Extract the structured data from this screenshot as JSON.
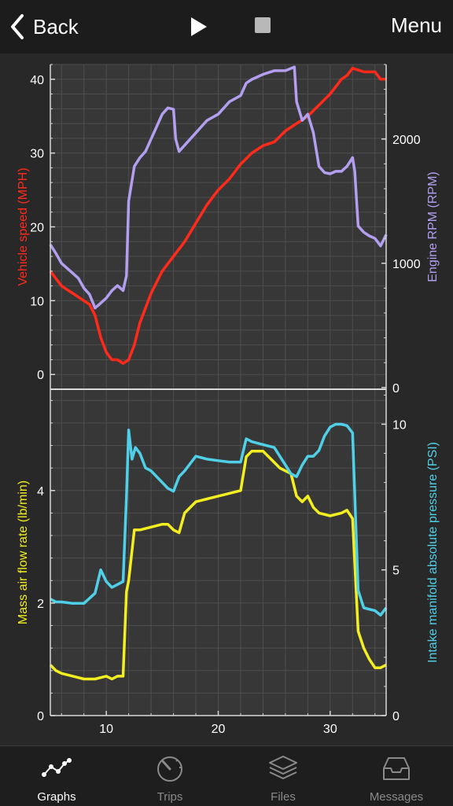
{
  "nav": {
    "back_label": "Back",
    "menu_label": "Menu"
  },
  "tabs": [
    {
      "label": "Graphs",
      "icon": "graph-icon",
      "active": true
    },
    {
      "label": "Trips",
      "icon": "speedometer-icon",
      "active": false
    },
    {
      "label": "Files",
      "icon": "layers-icon",
      "active": false
    },
    {
      "label": "Messages",
      "icon": "inbox-icon",
      "active": false
    }
  ],
  "chart_data": [
    {
      "type": "line",
      "xlim": [
        5,
        35
      ],
      "xticks": [
        10,
        20,
        30
      ],
      "grid": true,
      "y_left": {
        "label": "Vehicle speed (MPH)",
        "ylim": [
          -2,
          42
        ],
        "ticks": [
          0,
          10,
          20,
          30,
          40
        ],
        "color": "#ff2a1a"
      },
      "y_right": {
        "label": "Engine RPM (RPM)",
        "ylim": [
          -14,
          2600
        ],
        "ticks": [
          0,
          1000,
          2000
        ],
        "color": "#b39ef0"
      },
      "series": [
        {
          "name": "Vehicle speed (MPH)",
          "axis": "left",
          "color": "#ff2a1a",
          "x": [
            5,
            5.5,
            6,
            6.5,
            7,
            7.5,
            8,
            8.5,
            9,
            9.5,
            10,
            10.5,
            11,
            11.5,
            12,
            12.5,
            13,
            13.5,
            14,
            14.5,
            15,
            15.5,
            16,
            17,
            18,
            19,
            20,
            21,
            22,
            23,
            24,
            25,
            26,
            27,
            28,
            29,
            30,
            31,
            31.5,
            32,
            33,
            34,
            34.5,
            35
          ],
          "y": [
            14,
            13,
            12,
            11.5,
            11,
            10.5,
            10,
            9.5,
            8,
            5,
            3,
            2,
            2,
            1.5,
            2,
            4,
            7,
            9,
            11,
            12.5,
            14,
            15,
            16,
            18,
            20.5,
            23,
            25,
            26.5,
            28.5,
            30,
            31,
            31.5,
            33,
            34,
            35,
            36.5,
            38,
            40,
            40.5,
            41.5,
            41,
            41,
            40,
            40
          ]
        },
        {
          "name": "Engine RPM (RPM)",
          "axis": "right",
          "color": "#b39ef0",
          "x": [
            5,
            5.5,
            6,
            7,
            7.5,
            8,
            8.5,
            9,
            9.5,
            10,
            10.5,
            11,
            11.5,
            11.8,
            12,
            12.5,
            13,
            13.5,
            14,
            14.5,
            15,
            15.5,
            16,
            16.2,
            16.5,
            17,
            17.5,
            18,
            19,
            20,
            21,
            22,
            22.5,
            23,
            24,
            25,
            26,
            26.8,
            27,
            27.5,
            28,
            28.5,
            29,
            29.5,
            30,
            30.5,
            31,
            31.5,
            32,
            32.2,
            32.5,
            33,
            33.5,
            34,
            34.5,
            35
          ],
          "y": [
            1150,
            1080,
            1000,
            920,
            880,
            800,
            750,
            640,
            680,
            720,
            780,
            820,
            780,
            900,
            1500,
            1780,
            1850,
            1900,
            2000,
            2100,
            2200,
            2250,
            2240,
            2000,
            1900,
            1950,
            2000,
            2050,
            2150,
            2200,
            2300,
            2350,
            2450,
            2480,
            2520,
            2550,
            2550,
            2580,
            2300,
            2150,
            2200,
            2050,
            1780,
            1730,
            1720,
            1740,
            1740,
            1780,
            1850,
            1740,
            1300,
            1250,
            1220,
            1200,
            1140,
            1230
          ]
        }
      ]
    },
    {
      "type": "line",
      "xlim": [
        5,
        35
      ],
      "xticks": [
        10,
        20,
        30
      ],
      "grid": true,
      "y_left": {
        "label": "Mass air flow rate (lb/min)",
        "ylim": [
          0,
          5.8
        ],
        "ticks": [
          0,
          2,
          4
        ],
        "color": "#f2ee20"
      },
      "y_right": {
        "label": "Intake manifold absolute pressure (PSI)",
        "ylim": [
          0,
          11.2
        ],
        "ticks": [
          0,
          5,
          10
        ],
        "color": "#4fd0e8"
      },
      "series": [
        {
          "name": "Mass air flow rate (lb/min)",
          "axis": "left",
          "color": "#f2ee20",
          "x": [
            5,
            5.5,
            6,
            7,
            8,
            9,
            10,
            10.5,
            11,
            11.5,
            11.8,
            12,
            12.5,
            13,
            14,
            15,
            15.5,
            16,
            16.5,
            17,
            18,
            19,
            20,
            21,
            22,
            22.5,
            23,
            24,
            25,
            25.5,
            26,
            26.5,
            27,
            27.5,
            28,
            28.5,
            29,
            30,
            31,
            31.5,
            32,
            32.5,
            33,
            33.5,
            34,
            34.5,
            35
          ],
          "y": [
            0.9,
            0.8,
            0.75,
            0.7,
            0.65,
            0.65,
            0.7,
            0.65,
            0.7,
            0.7,
            2.2,
            2.4,
            3.3,
            3.3,
            3.35,
            3.4,
            3.4,
            3.3,
            3.25,
            3.6,
            3.8,
            3.85,
            3.9,
            3.95,
            4.0,
            4.6,
            4.7,
            4.7,
            4.5,
            4.4,
            4.35,
            4.3,
            3.9,
            3.8,
            3.9,
            3.7,
            3.6,
            3.55,
            3.6,
            3.65,
            3.5,
            1.5,
            1.2,
            1.0,
            0.85,
            0.85,
            0.9
          ]
        },
        {
          "name": "Intake manifold absolute pressure (PSI)",
          "axis": "right",
          "color": "#4fd0e8",
          "x": [
            5,
            5.5,
            6,
            7,
            8,
            9,
            9.5,
            10,
            10.5,
            11,
            11.5,
            11.8,
            12,
            12.3,
            12.6,
            13,
            13.5,
            14,
            15,
            15.5,
            16,
            16.5,
            17,
            18,
            19,
            20,
            21,
            22,
            22.5,
            23,
            24,
            25,
            26,
            26.5,
            27,
            27.5,
            28,
            28.5,
            29,
            29.5,
            30,
            30.5,
            31,
            31.5,
            32,
            32.5,
            33,
            33.5,
            34,
            34.5,
            35
          ],
          "y": [
            4.0,
            3.9,
            3.9,
            3.85,
            3.85,
            4.2,
            5.0,
            4.6,
            4.4,
            4.5,
            4.6,
            7.5,
            9.8,
            8.8,
            9.2,
            9.0,
            8.5,
            8.4,
            8.0,
            7.8,
            7.7,
            8.2,
            8.4,
            8.9,
            8.8,
            8.75,
            8.7,
            8.7,
            9.5,
            9.4,
            9.3,
            9.2,
            8.6,
            8.3,
            8.2,
            8.6,
            8.9,
            8.9,
            9.1,
            9.6,
            9.9,
            10.0,
            10.0,
            9.95,
            9.7,
            4.3,
            3.7,
            3.65,
            3.6,
            3.45,
            3.7
          ]
        }
      ]
    }
  ]
}
